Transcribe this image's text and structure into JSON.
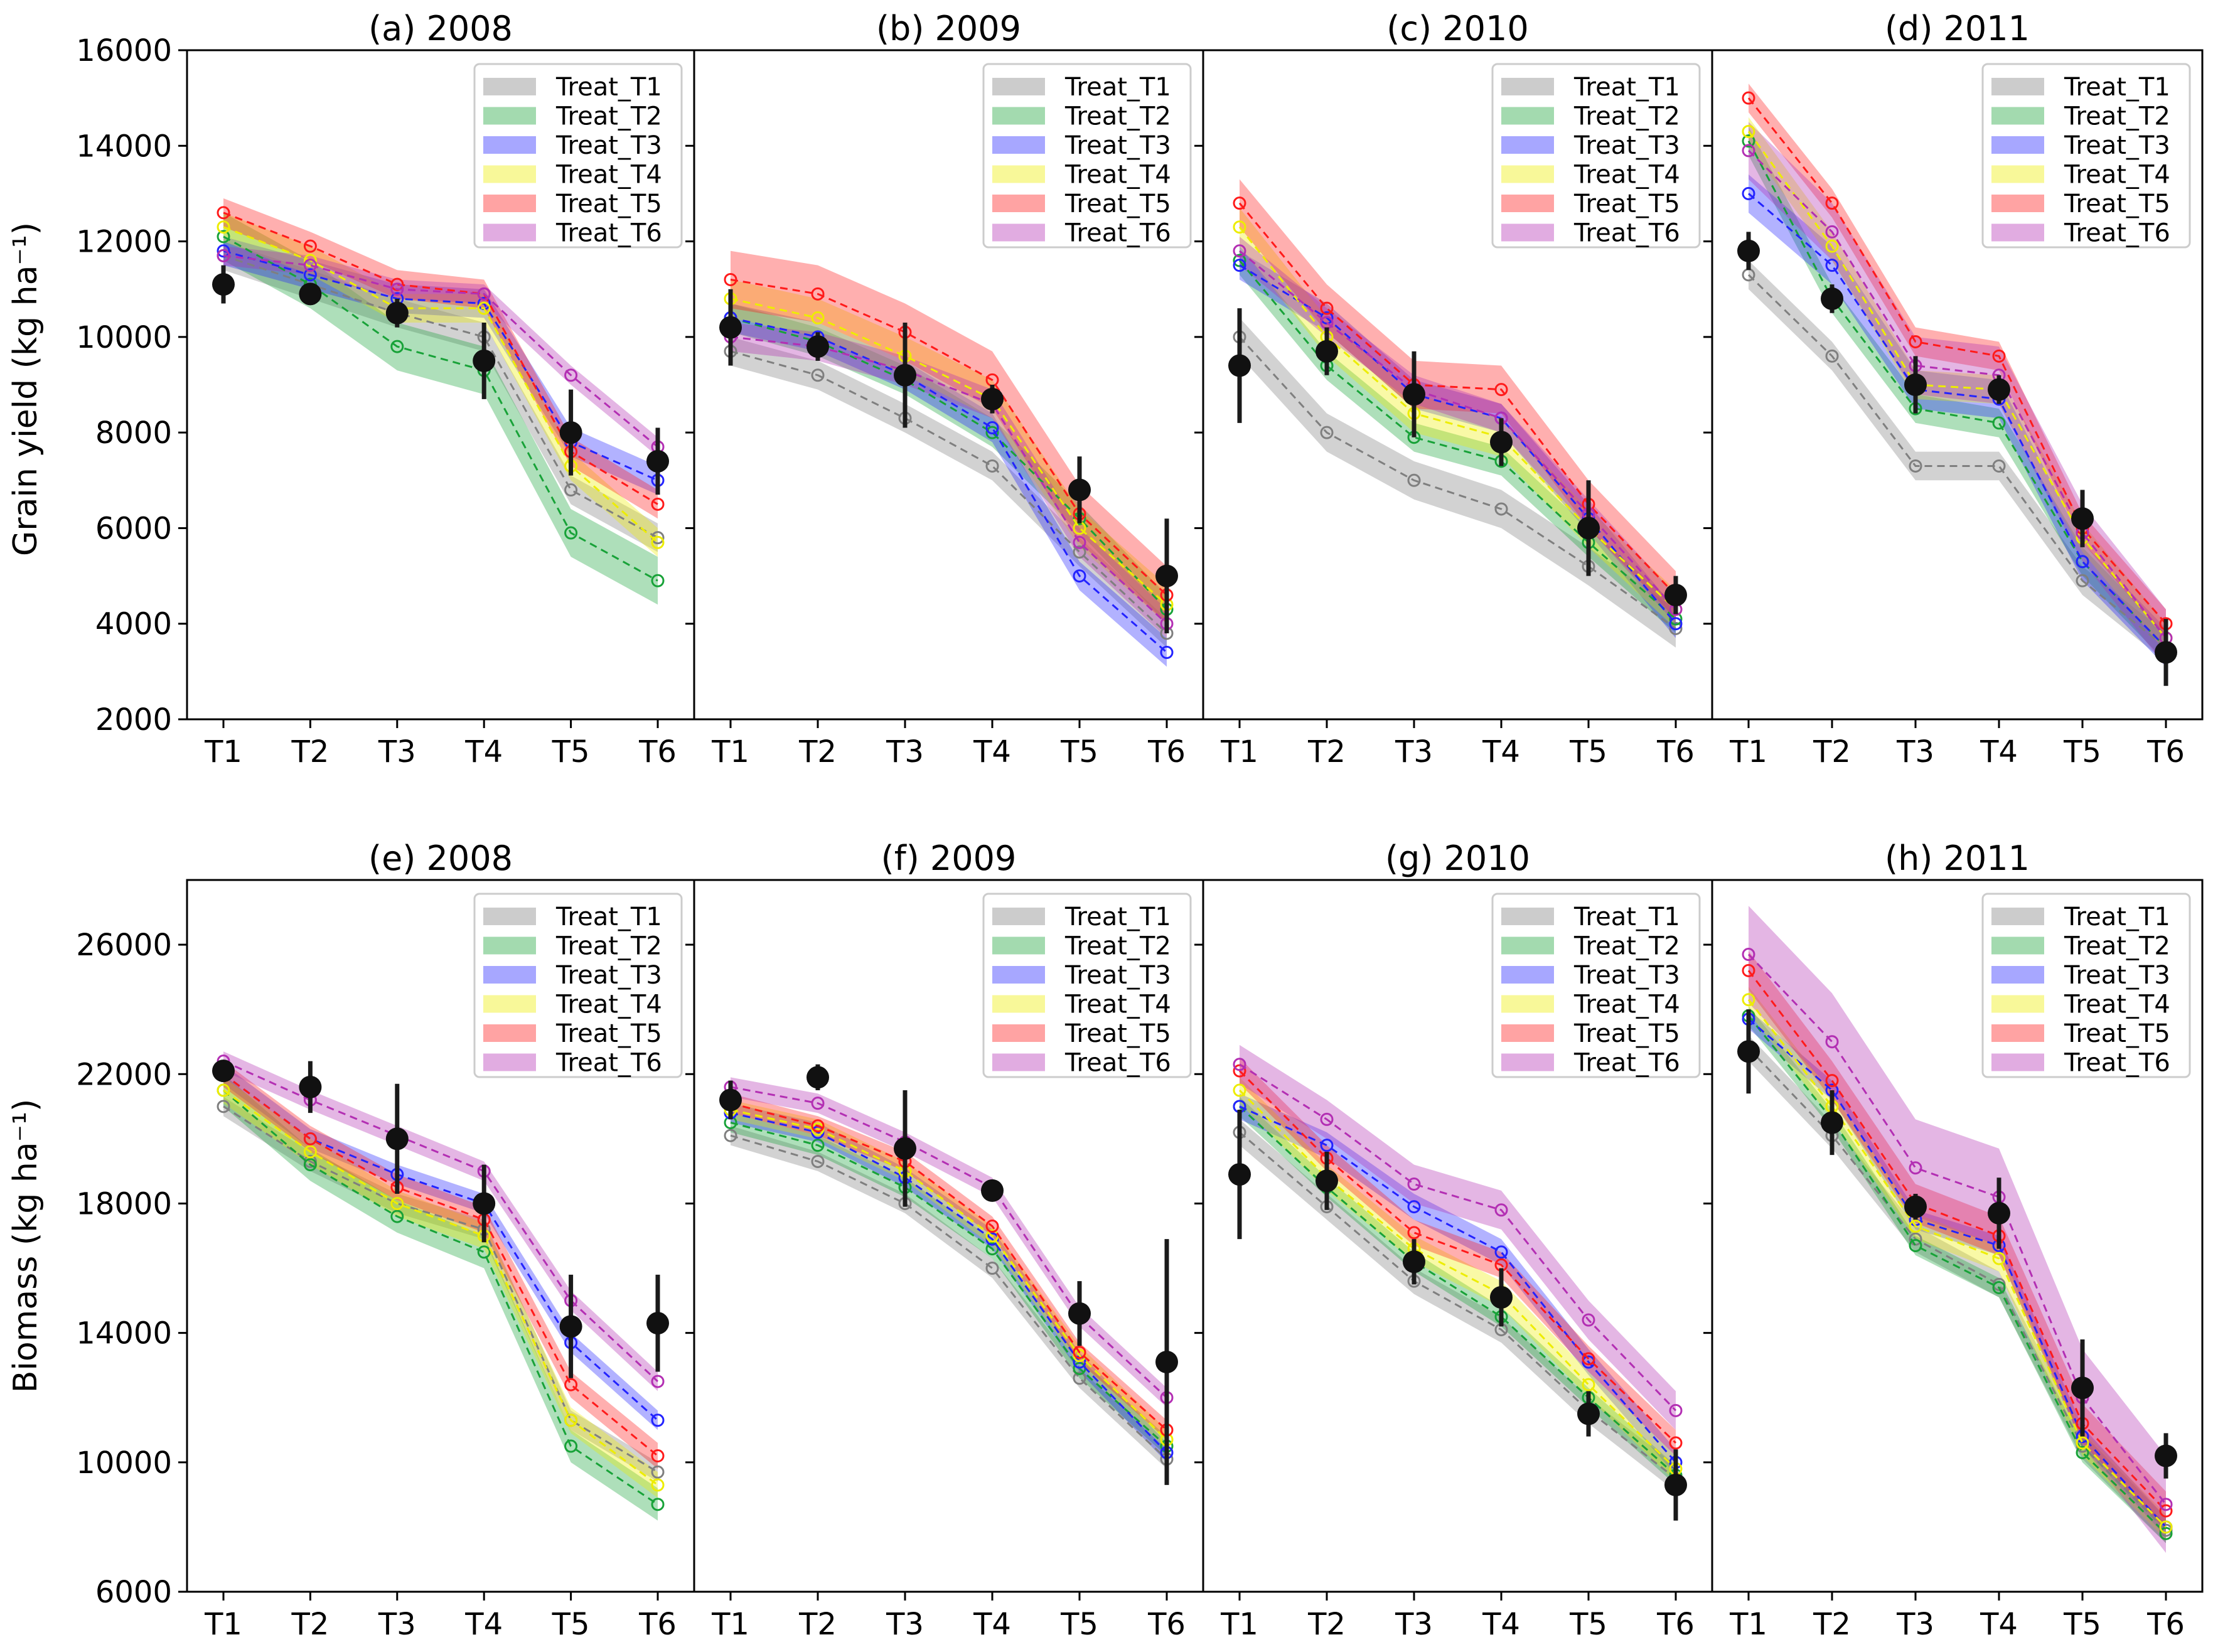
{
  "figure": {
    "ylabels": {
      "yield": "Grain yield (kg ha⁻¹)",
      "biomass": "Biomass (kg ha⁻¹)"
    },
    "colors": {
      "Treat_T1": "#7f7f7f",
      "Treat_T2": "#18a238",
      "Treat_T3": "#2323ff",
      "Treat_T4": "#eded00",
      "Treat_T5": "#ff1a1a",
      "Treat_T6": "#b32fb3",
      "observed": "#111111"
    }
  },
  "chart_data": [
    {
      "type": "line",
      "panel": "a",
      "title": "(a) 2008",
      "metric": "yield",
      "categories": [
        "T1",
        "T2",
        "T3",
        "T4",
        "T5",
        "T6"
      ],
      "ylim": [
        2000,
        16000
      ],
      "yticks": [
        2000,
        4000,
        6000,
        8000,
        10000,
        12000,
        14000,
        16000
      ],
      "legend": [
        "Treat_T1",
        "Treat_T2",
        "Treat_T3",
        "Treat_T4",
        "Treat_T5",
        "Treat_T6"
      ],
      "series": [
        {
          "name": "Treat_T1",
          "values": [
            11700,
            11100,
            10500,
            10000,
            6800,
            5800
          ],
          "band": 300
        },
        {
          "name": "Treat_T2",
          "values": [
            12100,
            11100,
            9800,
            9300,
            5900,
            4900
          ],
          "band": 500
        },
        {
          "name": "Treat_T3",
          "values": [
            11800,
            11300,
            10800,
            10700,
            7800,
            7000
          ],
          "band": 300
        },
        {
          "name": "Treat_T4",
          "values": [
            12300,
            11600,
            10600,
            10600,
            7300,
            5700
          ],
          "band": 300
        },
        {
          "name": "Treat_T5",
          "values": [
            12600,
            11900,
            11100,
            10900,
            7600,
            6500
          ],
          "band": 300
        },
        {
          "name": "Treat_T6",
          "values": [
            11700,
            11500,
            11000,
            10900,
            9200,
            7700
          ],
          "band": 200
        }
      ],
      "observed": {
        "values": [
          11100,
          10900,
          10500,
          9500,
          8000,
          7400
        ],
        "err": [
          400,
          200,
          300,
          800,
          900,
          700
        ]
      }
    },
    {
      "type": "line",
      "panel": "b",
      "title": "(b) 2009",
      "metric": "yield",
      "categories": [
        "T1",
        "T2",
        "T3",
        "T4",
        "T5",
        "T6"
      ],
      "ylim": [
        2000,
        16000
      ],
      "yticks": [
        2000,
        4000,
        6000,
        8000,
        10000,
        12000,
        14000,
        16000
      ],
      "legend": [
        "Treat_T1",
        "Treat_T2",
        "Treat_T3",
        "Treat_T4",
        "Treat_T5",
        "Treat_T6"
      ],
      "series": [
        {
          "name": "Treat_T1",
          "values": [
            9700,
            9200,
            8300,
            7300,
            5500,
            3800
          ],
          "band": 300
        },
        {
          "name": "Treat_T2",
          "values": [
            10400,
            9900,
            9100,
            8000,
            6200,
            4300
          ],
          "band": 300
        },
        {
          "name": "Treat_T3",
          "values": [
            10400,
            10000,
            9200,
            8100,
            5000,
            3400
          ],
          "band": 300
        },
        {
          "name": "Treat_T4",
          "values": [
            10800,
            10400,
            9600,
            8700,
            6000,
            4400
          ],
          "band": 400
        },
        {
          "name": "Treat_T5",
          "values": [
            11200,
            10900,
            10100,
            9100,
            6300,
            4600
          ],
          "band": 600
        },
        {
          "name": "Treat_T6",
          "values": [
            10000,
            9800,
            9300,
            8600,
            5700,
            4000
          ],
          "band": 300
        }
      ],
      "observed": {
        "values": [
          10200,
          9800,
          9200,
          8700,
          6800,
          5000
        ],
        "err": [
          800,
          300,
          1100,
          300,
          700,
          1200
        ]
      }
    },
    {
      "type": "line",
      "panel": "c",
      "title": "(c) 2010",
      "metric": "yield",
      "categories": [
        "T1",
        "T2",
        "T3",
        "T4",
        "T5",
        "T6"
      ],
      "ylim": [
        2000,
        16000
      ],
      "yticks": [
        2000,
        4000,
        6000,
        8000,
        10000,
        12000,
        14000,
        16000
      ],
      "legend": [
        "Treat_T1",
        "Treat_T2",
        "Treat_T3",
        "Treat_T4",
        "Treat_T5",
        "Treat_T6"
      ],
      "series": [
        {
          "name": "Treat_T1",
          "values": [
            10000,
            8000,
            7000,
            6400,
            5200,
            3900
          ],
          "band": 400
        },
        {
          "name": "Treat_T2",
          "values": [
            11600,
            9400,
            7900,
            7400,
            5700,
            4100
          ],
          "band": 300
        },
        {
          "name": "Treat_T3",
          "values": [
            11500,
            10400,
            8800,
            8300,
            6200,
            4000
          ],
          "band": 300
        },
        {
          "name": "Treat_T4",
          "values": [
            12300,
            10000,
            8400,
            7900,
            6000,
            4300
          ],
          "band": 400
        },
        {
          "name": "Treat_T5",
          "values": [
            12800,
            10600,
            9000,
            8900,
            6500,
            4600
          ],
          "band": 500
        },
        {
          "name": "Treat_T6",
          "values": [
            11800,
            10300,
            8900,
            8300,
            6300,
            4300
          ],
          "band": 300
        }
      ],
      "observed": {
        "values": [
          9400,
          9700,
          8800,
          7800,
          6000,
          4600
        ],
        "err": [
          1200,
          500,
          900,
          500,
          1000,
          400
        ]
      }
    },
    {
      "type": "line",
      "panel": "d",
      "title": "(d) 2011",
      "metric": "yield",
      "categories": [
        "T1",
        "T2",
        "T3",
        "T4",
        "T5",
        "T6"
      ],
      "ylim": [
        2000,
        16000
      ],
      "yticks": [
        2000,
        4000,
        6000,
        8000,
        10000,
        12000,
        14000,
        16000
      ],
      "legend": [
        "Treat_T1",
        "Treat_T2",
        "Treat_T3",
        "Treat_T4",
        "Treat_T5",
        "Treat_T6"
      ],
      "series": [
        {
          "name": "Treat_T1",
          "values": [
            11300,
            9600,
            7300,
            7300,
            4900,
            3500
          ],
          "band": 300
        },
        {
          "name": "Treat_T2",
          "values": [
            14100,
            10800,
            8500,
            8200,
            5300,
            3500
          ],
          "band": 300
        },
        {
          "name": "Treat_T3",
          "values": [
            13000,
            11500,
            8900,
            8700,
            5300,
            3500
          ],
          "band": 400
        },
        {
          "name": "Treat_T4",
          "values": [
            14300,
            11900,
            9000,
            8900,
            5800,
            3700
          ],
          "band": 300
        },
        {
          "name": "Treat_T5",
          "values": [
            15000,
            12800,
            9900,
            9600,
            6000,
            4000
          ],
          "band": 300
        },
        {
          "name": "Treat_T6",
          "values": [
            13900,
            12200,
            9400,
            9200,
            5900,
            3700
          ],
          "band": 600
        }
      ],
      "observed": {
        "values": [
          11800,
          10800,
          9000,
          8900,
          6200,
          3400
        ],
        "err": [
          400,
          300,
          600,
          300,
          600,
          700
        ]
      }
    },
    {
      "type": "line",
      "panel": "e",
      "title": "(e) 2008",
      "metric": "biomass",
      "categories": [
        "T1",
        "T2",
        "T3",
        "T4",
        "T5",
        "T6"
      ],
      "ylim": [
        6000,
        28000
      ],
      "yticks": [
        6000,
        10000,
        14000,
        18000,
        22000,
        26000
      ],
      "legend": [
        "Treat_T1",
        "Treat_T2",
        "Treat_T3",
        "Treat_T4",
        "Treat_T5",
        "Treat_T6"
      ],
      "series": [
        {
          "name": "Treat_T1",
          "values": [
            21000,
            19300,
            18000,
            17200,
            11300,
            9700
          ],
          "band": 300
        },
        {
          "name": "Treat_T2",
          "values": [
            21500,
            19200,
            17600,
            16500,
            10500,
            8700
          ],
          "band": 500
        },
        {
          "name": "Treat_T3",
          "values": [
            22000,
            20000,
            18900,
            18000,
            13700,
            11300
          ],
          "band": 300
        },
        {
          "name": "Treat_T4",
          "values": [
            21500,
            19600,
            18000,
            17000,
            11300,
            9300
          ],
          "band": 400
        },
        {
          "name": "Treat_T5",
          "values": [
            22000,
            20000,
            18500,
            17500,
            12400,
            10200
          ],
          "band": 400
        },
        {
          "name": "Treat_T6",
          "values": [
            22400,
            21200,
            20100,
            19000,
            15000,
            12500
          ],
          "band": 300
        }
      ],
      "observed": {
        "values": [
          22100,
          21600,
          20000,
          18000,
          14200,
          14300
        ],
        "err": [
          200,
          800,
          1700,
          1200,
          1600,
          1500
        ]
      }
    },
    {
      "type": "line",
      "panel": "f",
      "title": "(f) 2009",
      "metric": "biomass",
      "categories": [
        "T1",
        "T2",
        "T3",
        "T4",
        "T5",
        "T6"
      ],
      "ylim": [
        6000,
        28000
      ],
      "yticks": [
        6000,
        10000,
        14000,
        18000,
        22000,
        26000
      ],
      "legend": [
        "Treat_T1",
        "Treat_T2",
        "Treat_T3",
        "Treat_T4",
        "Treat_T5",
        "Treat_T6"
      ],
      "series": [
        {
          "name": "Treat_T1",
          "values": [
            20100,
            19300,
            18000,
            16000,
            12600,
            10100
          ],
          "band": 300
        },
        {
          "name": "Treat_T2",
          "values": [
            20500,
            19800,
            18500,
            16600,
            12900,
            10500
          ],
          "band": 300
        },
        {
          "name": "Treat_T3",
          "values": [
            20800,
            20200,
            18800,
            16900,
            13100,
            10300
          ],
          "band": 300
        },
        {
          "name": "Treat_T4",
          "values": [
            20900,
            20300,
            19000,
            17000,
            13300,
            10700
          ],
          "band": 300
        },
        {
          "name": "Treat_T5",
          "values": [
            21100,
            20400,
            19300,
            17300,
            13400,
            11000
          ],
          "band": 300
        },
        {
          "name": "Treat_T6",
          "values": [
            21600,
            21100,
            19900,
            18500,
            14500,
            12000
          ],
          "band": 300
        }
      ],
      "observed": {
        "values": [
          21200,
          21900,
          19700,
          18400,
          14600,
          13100
        ],
        "err": [
          600,
          400,
          1800,
          200,
          1000,
          3800
        ]
      }
    },
    {
      "type": "line",
      "panel": "g",
      "title": "(g) 2010",
      "metric": "biomass",
      "categories": [
        "T1",
        "T2",
        "T3",
        "T4",
        "T5",
        "T6"
      ],
      "ylim": [
        6000,
        28000
      ],
      "yticks": [
        6000,
        10000,
        14000,
        18000,
        22000,
        26000
      ],
      "legend": [
        "Treat_T1",
        "Treat_T2",
        "Treat_T3",
        "Treat_T4",
        "Treat_T5",
        "Treat_T6"
      ],
      "series": [
        {
          "name": "Treat_T1",
          "values": [
            20200,
            17900,
            15600,
            14100,
            11600,
            9500
          ],
          "band": 400
        },
        {
          "name": "Treat_T2",
          "values": [
            21000,
            18500,
            16200,
            14500,
            12000,
            9600
          ],
          "band": 300
        },
        {
          "name": "Treat_T3",
          "values": [
            21000,
            19800,
            17900,
            16500,
            13100,
            10000
          ],
          "band": 400
        },
        {
          "name": "Treat_T4",
          "values": [
            21500,
            18800,
            16600,
            15200,
            12400,
            9800
          ],
          "band": 400
        },
        {
          "name": "Treat_T5",
          "values": [
            22100,
            19400,
            17100,
            16100,
            13200,
            10600
          ],
          "band": 400
        },
        {
          "name": "Treat_T6",
          "values": [
            22300,
            20600,
            18600,
            17800,
            14400,
            11600
          ],
          "band": 600
        }
      ],
      "observed": {
        "values": [
          18900,
          18700,
          16200,
          15100,
          11500,
          9300
        ],
        "err": [
          2000,
          900,
          700,
          900,
          700,
          1100
        ]
      }
    },
    {
      "type": "line",
      "panel": "h",
      "title": "(h) 2011",
      "metric": "biomass",
      "categories": [
        "T1",
        "T2",
        "T3",
        "T4",
        "T5",
        "T6"
      ],
      "ylim": [
        6000,
        28000
      ],
      "yticks": [
        6000,
        10000,
        14000,
        18000,
        22000,
        26000
      ],
      "legend": [
        "Treat_T1",
        "Treat_T2",
        "Treat_T3",
        "Treat_T4",
        "Treat_T5",
        "Treat_T6"
      ],
      "series": [
        {
          "name": "Treat_T1",
          "values": [
            22800,
            20100,
            16900,
            15500,
            10500,
            7900
          ],
          "band": 400
        },
        {
          "name": "Treat_T2",
          "values": [
            23800,
            20600,
            16700,
            15400,
            10300,
            7800
          ],
          "band": 300
        },
        {
          "name": "Treat_T3",
          "values": [
            23700,
            21500,
            17500,
            16700,
            10800,
            8000
          ],
          "band": 300
        },
        {
          "name": "Treat_T4",
          "values": [
            24300,
            21000,
            17300,
            16300,
            10600,
            8000
          ],
          "band": 400
        },
        {
          "name": "Treat_T5",
          "values": [
            25200,
            21800,
            18000,
            17000,
            11200,
            8500
          ],
          "band": 600
        },
        {
          "name": "Treat_T6",
          "values": [
            25700,
            23000,
            19100,
            18200,
            12000,
            8700
          ],
          "band": 1500
        }
      ],
      "observed": {
        "values": [
          22700,
          20500,
          17900,
          17700,
          12300,
          10200
        ],
        "err": [
          1300,
          1000,
          400,
          1100,
          1500,
          700
        ]
      }
    }
  ]
}
